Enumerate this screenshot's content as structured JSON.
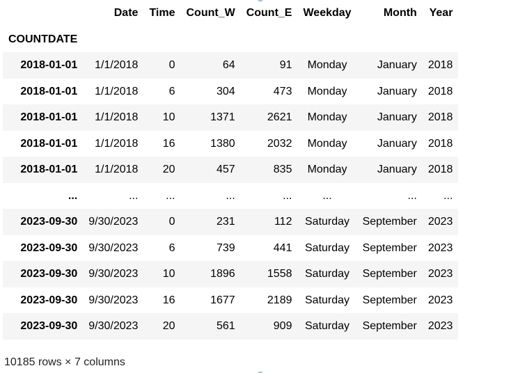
{
  "table": {
    "columns": [
      "Date",
      "Time",
      "Count_W",
      "Count_E",
      "Weekday",
      "Month",
      "Year"
    ],
    "index_name": "COUNTDATE",
    "rows": [
      {
        "index": "2018-01-01",
        "cells": [
          "1/1/2018",
          "0",
          "64",
          "91",
          "Monday",
          "January",
          "2018"
        ]
      },
      {
        "index": "2018-01-01",
        "cells": [
          "1/1/2018",
          "6",
          "304",
          "473",
          "Monday",
          "January",
          "2018"
        ]
      },
      {
        "index": "2018-01-01",
        "cells": [
          "1/1/2018",
          "10",
          "1371",
          "2621",
          "Monday",
          "January",
          "2018"
        ]
      },
      {
        "index": "2018-01-01",
        "cells": [
          "1/1/2018",
          "16",
          "1380",
          "2032",
          "Monday",
          "January",
          "2018"
        ]
      },
      {
        "index": "2018-01-01",
        "cells": [
          "1/1/2018",
          "20",
          "457",
          "835",
          "Monday",
          "January",
          "2018"
        ]
      },
      {
        "index": "...",
        "cells": [
          "...",
          "...",
          "...",
          "...",
          "...",
          "...",
          "..."
        ]
      },
      {
        "index": "2023-09-30",
        "cells": [
          "9/30/2023",
          "0",
          "231",
          "112",
          "Saturday",
          "September",
          "2023"
        ]
      },
      {
        "index": "2023-09-30",
        "cells": [
          "9/30/2023",
          "6",
          "739",
          "441",
          "Saturday",
          "September",
          "2023"
        ]
      },
      {
        "index": "2023-09-30",
        "cells": [
          "9/30/2023",
          "10",
          "1896",
          "1558",
          "Saturday",
          "September",
          "2023"
        ]
      },
      {
        "index": "2023-09-30",
        "cells": [
          "9/30/2023",
          "16",
          "1677",
          "2189",
          "Saturday",
          "September",
          "2023"
        ]
      },
      {
        "index": "2023-09-30",
        "cells": [
          "9/30/2023",
          "20",
          "561",
          "909",
          "Saturday",
          "September",
          "2023"
        ]
      }
    ]
  },
  "footer": {
    "shape_text": "10185 rows × 7 columns"
  },
  "colors": {
    "stripe": "#f5f5f5",
    "background": "#ffffff",
    "scroll_marker": "#9ec5e6"
  }
}
